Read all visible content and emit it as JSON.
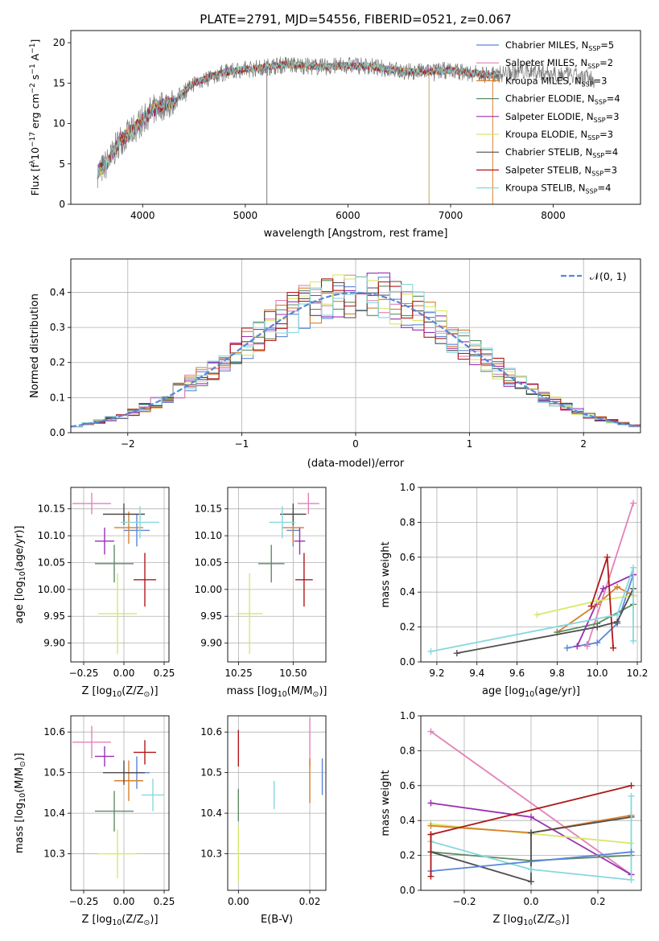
{
  "title": "PLATE=2791, MJD=54556, FIBERID=0521, z=0.067",
  "colors": {
    "chabrier_miles": "#5b86d6",
    "salpeter_miles": "#e381b8",
    "kroupa_miles": "#d77f2e",
    "chabrier_elodie": "#5f8b64",
    "salpeter_elodie": "#9a2fb5",
    "kroupa_elodie": "#d7e868",
    "chabrier_stelib": "#4d4d4d",
    "salpeter_stelib": "#b01818",
    "kroupa_stelib": "#86d8dc",
    "gauss": "#5b86d6"
  },
  "chart_data": [
    {
      "id": "spectrum",
      "type": "line",
      "xlabel": "wavelength [Angstrom, rest frame]",
      "ylabel_parts": [
        "Flux [f",
        "λ",
        "10",
        "−17",
        " erg cm",
        "−2",
        " s",
        "−1",
        " A",
        "−1",
        "]"
      ],
      "xlim": [
        3300,
        8850
      ],
      "ylim": [
        0,
        21.5
      ],
      "xticks": [
        4000,
        5000,
        6000,
        7000,
        8000
      ],
      "yticks": [
        0,
        5,
        10,
        15,
        20
      ],
      "continuum": [
        [
          3560,
          4
        ],
        [
          3620,
          4.5
        ],
        [
          3700,
          6
        ],
        [
          3780,
          8
        ],
        [
          3850,
          8.5
        ],
        [
          3930,
          9.5
        ],
        [
          4000,
          10.5
        ],
        [
          4080,
          11.5
        ],
        [
          4150,
          12
        ],
        [
          4230,
          12.5
        ],
        [
          4300,
          12.5
        ],
        [
          4400,
          14
        ],
        [
          4500,
          15
        ],
        [
          4600,
          15.5
        ],
        [
          4700,
          16
        ],
        [
          4800,
          16.3
        ],
        [
          4900,
          16.5
        ],
        [
          5000,
          16.7
        ],
        [
          5100,
          16.8
        ],
        [
          5200,
          17
        ],
        [
          5400,
          17.3
        ],
        [
          5600,
          17.1
        ],
        [
          5800,
          17
        ],
        [
          6000,
          17.2
        ],
        [
          6200,
          17.1
        ],
        [
          6400,
          16.7
        ],
        [
          6600,
          16.4
        ],
        [
          6800,
          16.4
        ],
        [
          7000,
          16.6
        ],
        [
          7200,
          16.2
        ],
        [
          7400,
          16
        ],
        [
          7600,
          16.3
        ],
        [
          7800,
          16.5
        ],
        [
          8000,
          16.3
        ],
        [
          8200,
          15.8
        ],
        [
          8400,
          15.5
        ]
      ],
      "data_end": 8400,
      "model_end": 7480,
      "spikes": [
        [
          5210,
          0
        ],
        [
          6790,
          0
        ],
        [
          7410,
          0
        ]
      ],
      "legend": [
        {
          "label": "Chabrier MILES, N",
          "sub": "SSP",
          "tail": "=5",
          "color": "#5b86d6"
        },
        {
          "label": "Salpeter MILES, N",
          "sub": "SSP",
          "tail": "=2",
          "color": "#e381b8"
        },
        {
          "label": "Kroupa MILES, N",
          "sub": "SSP",
          "tail": "=3",
          "color": "#d77f2e"
        },
        {
          "label": "Chabrier ELODIE, N",
          "sub": "SSP",
          "tail": "=4",
          "color": "#5f8b64"
        },
        {
          "label": "Salpeter ELODIE, N",
          "sub": "SSP",
          "tail": "=3",
          "color": "#9a2fb5"
        },
        {
          "label": "Kroupa ELODIE, N",
          "sub": "SSP",
          "tail": "=3",
          "color": "#d7e868"
        },
        {
          "label": "Chabrier STELIB, N",
          "sub": "SSP",
          "tail": "=4",
          "color": "#4d4d4d"
        },
        {
          "label": "Salpeter STELIB, N",
          "sub": "SSP",
          "tail": "=3",
          "color": "#b01818"
        },
        {
          "label": "Kroupa STELIB, N",
          "sub": "SSP",
          "tail": "=4",
          "color": "#86d8dc"
        }
      ]
    },
    {
      "id": "residuals",
      "type": "histogram",
      "xlabel": "(data-model)/error",
      "ylabel": "Normed distribution",
      "xlim": [
        -2.5,
        2.5
      ],
      "ylim": [
        0,
        0.495
      ],
      "xticks": [
        -2,
        -1,
        0,
        1,
        2
      ],
      "yticks": [
        0.0,
        0.1,
        0.2,
        0.3,
        0.4
      ],
      "bin_width": 0.1,
      "legend_label": "𝒩(0, 1)",
      "grid": true
    },
    {
      "id": "age_vs_Z",
      "type": "errorbar",
      "xlabel": "Z [log",
      "xlabel_parts": [
        "Z [log",
        "10",
        "(Z/Z",
        "⊙",
        ")]"
      ],
      "ylabel_parts": [
        "age  [log",
        "10",
        "(age/yr)]"
      ],
      "xlim": [
        -0.33,
        0.28
      ],
      "ylim": [
        9.865,
        10.19
      ],
      "xticks": [
        -0.25,
        0.0,
        0.25
      ],
      "xticklabels": [
        "−0.25",
        "0.00",
        "0.25"
      ],
      "yticks": [
        9.9,
        9.95,
        10.0,
        10.05,
        10.1,
        10.15
      ],
      "points": [
        {
          "x": 0.08,
          "y": 10.11,
          "xe": 0.08,
          "ye": 0.03,
          "color": "#5b86d6"
        },
        {
          "x": -0.2,
          "y": 10.16,
          "xe": 0.12,
          "ye": 0.02,
          "color": "#e381b8"
        },
        {
          "x": 0.03,
          "y": 10.115,
          "xe": 0.09,
          "ye": 0.03,
          "color": "#d77f2e"
        },
        {
          "x": -0.06,
          "y": 10.048,
          "xe": 0.12,
          "ye": 0.035,
          "color": "#5f8b64"
        },
        {
          "x": -0.12,
          "y": 10.09,
          "xe": 0.06,
          "ye": 0.025,
          "color": "#9a2fb5"
        },
        {
          "x": -0.04,
          "y": 9.955,
          "xe": 0.12,
          "ye": 0.075,
          "color": "#d7e868"
        },
        {
          "x": 0.0,
          "y": 10.14,
          "xe": 0.13,
          "ye": 0.02,
          "color": "#4d4d4d"
        },
        {
          "x": 0.13,
          "y": 10.018,
          "xe": 0.07,
          "ye": 0.05,
          "color": "#b01818"
        },
        {
          "x": 0.1,
          "y": 10.125,
          "xe": 0.12,
          "ye": 0.03,
          "color": "#86d8dc"
        }
      ]
    },
    {
      "id": "age_vs_mass",
      "type": "errorbar",
      "xlabel_parts": [
        "mass [log",
        "10",
        "(M/M",
        "⊙",
        ")]"
      ],
      "xlim": [
        10.2,
        10.65
      ],
      "ylim": [
        9.865,
        10.19
      ],
      "xticks": [
        10.25,
        10.5
      ],
      "xticklabels": [
        "10.25",
        "10.50"
      ],
      "yticks": [
        9.9,
        9.95,
        10.0,
        10.05,
        10.1,
        10.15
      ],
      "points": [
        {
          "x": 10.5,
          "y": 10.11,
          "xe": 0.03,
          "ye": 0.03,
          "color": "#5b86d6"
        },
        {
          "x": 10.57,
          "y": 10.16,
          "xe": 0.05,
          "ye": 0.02,
          "color": "#e381b8"
        },
        {
          "x": 10.5,
          "y": 10.115,
          "xe": 0.05,
          "ye": 0.03,
          "color": "#d77f2e"
        },
        {
          "x": 10.4,
          "y": 10.048,
          "xe": 0.06,
          "ye": 0.035,
          "color": "#5f8b64"
        },
        {
          "x": 10.53,
          "y": 10.09,
          "xe": 0.025,
          "ye": 0.025,
          "color": "#9a2fb5"
        },
        {
          "x": 10.3,
          "y": 9.955,
          "xe": 0.06,
          "ye": 0.075,
          "color": "#d7e868"
        },
        {
          "x": 10.5,
          "y": 10.14,
          "xe": 0.06,
          "ye": 0.02,
          "color": "#4d4d4d"
        },
        {
          "x": 10.55,
          "y": 10.018,
          "xe": 0.04,
          "ye": 0.05,
          "color": "#b01818"
        },
        {
          "x": 10.45,
          "y": 10.125,
          "xe": 0.06,
          "ye": 0.03,
          "color": "#86d8dc"
        }
      ]
    },
    {
      "id": "weight_vs_age",
      "type": "line",
      "xlabel_parts": [
        "age  [log",
        "10",
        "(age/yr)]"
      ],
      "ylabel": "mass weight",
      "xlim": [
        9.12,
        10.22
      ],
      "ylim": [
        0,
        1.0
      ],
      "xticks": [
        9.2,
        9.4,
        9.6,
        9.8,
        10.0,
        10.2
      ],
      "yticks": [
        0.0,
        0.2,
        0.4,
        0.6,
        0.8,
        1.0
      ],
      "grid": true,
      "series": [
        {
          "color": "#5b86d6",
          "pts": [
            [
              9.85,
              0.08
            ],
            [
              9.95,
              0.1
            ],
            [
              10.0,
              0.11
            ],
            [
              10.1,
              0.22
            ],
            [
              10.18,
              0.5
            ]
          ]
        },
        {
          "color": "#e381b8",
          "pts": [
            [
              9.95,
              0.09
            ],
            [
              10.18,
              0.91
            ]
          ]
        },
        {
          "color": "#d77f2e",
          "pts": [
            [
              9.8,
              0.17
            ],
            [
              10.0,
              0.33
            ],
            [
              10.1,
              0.43
            ],
            [
              10.18,
              0.38
            ]
          ]
        },
        {
          "color": "#5f8b64",
          "pts": [
            [
              9.8,
              0.17
            ],
            [
              10.0,
              0.22
            ],
            [
              10.18,
              0.33
            ]
          ]
        },
        {
          "color": "#9a2fb5",
          "pts": [
            [
              9.9,
              0.09
            ],
            [
              10.03,
              0.42
            ],
            [
              10.18,
              0.5
            ]
          ]
        },
        {
          "color": "#d7e868",
          "pts": [
            [
              9.7,
              0.27
            ],
            [
              10.0,
              0.35
            ],
            [
              10.18,
              0.38
            ]
          ]
        },
        {
          "color": "#4d4d4d",
          "pts": [
            [
              9.3,
              0.05
            ],
            [
              10.0,
              0.2
            ],
            [
              10.1,
              0.23
            ],
            [
              10.18,
              0.42
            ]
          ]
        },
        {
          "color": "#b01818",
          "pts": [
            [
              9.97,
              0.32
            ],
            [
              10.05,
              0.6
            ],
            [
              10.08,
              0.08
            ]
          ]
        },
        {
          "color": "#86d8dc",
          "pts": [
            [
              9.17,
              0.06
            ],
            [
              10.1,
              0.27
            ],
            [
              10.18,
              0.54
            ],
            [
              10.18,
              0.12
            ]
          ]
        }
      ]
    },
    {
      "id": "mass_vs_Z",
      "type": "errorbar",
      "xlabel_parts": [
        "Z [log",
        "10",
        "(Z/Z",
        "⊙",
        ")]"
      ],
      "ylabel_parts": [
        "mass [log",
        "10",
        "(M/M",
        "⊙",
        ")]"
      ],
      "xlim": [
        -0.33,
        0.28
      ],
      "ylim": [
        10.21,
        10.64
      ],
      "xticks": [
        -0.25,
        0.0,
        0.25
      ],
      "xticklabels": [
        "−0.25",
        "0.00",
        "0.25"
      ],
      "yticks": [
        10.3,
        10.4,
        10.5,
        10.6
      ],
      "points": [
        {
          "x": 0.08,
          "y": 10.5,
          "xe": 0.08,
          "ye": 0.04,
          "color": "#5b86d6"
        },
        {
          "x": -0.2,
          "y": 10.575,
          "xe": 0.12,
          "ye": 0.04,
          "color": "#e381b8"
        },
        {
          "x": 0.03,
          "y": 10.48,
          "xe": 0.09,
          "ye": 0.05,
          "color": "#d77f2e"
        },
        {
          "x": -0.06,
          "y": 10.405,
          "xe": 0.12,
          "ye": 0.05,
          "color": "#5f8b64"
        },
        {
          "x": -0.12,
          "y": 10.54,
          "xe": 0.06,
          "ye": 0.025,
          "color": "#9a2fb5"
        },
        {
          "x": -0.04,
          "y": 10.3,
          "xe": 0.12,
          "ye": 0.06,
          "color": "#d7e868"
        },
        {
          "x": 0.0,
          "y": 10.5,
          "xe": 0.13,
          "ye": 0.03,
          "color": "#4d4d4d"
        },
        {
          "x": 0.13,
          "y": 10.55,
          "xe": 0.07,
          "ye": 0.03,
          "color": "#b01818"
        },
        {
          "x": 0.18,
          "y": 10.445,
          "xe": 0.07,
          "ye": 0.04,
          "color": "#86d8dc"
        }
      ]
    },
    {
      "id": "mass_vs_ebv",
      "type": "errorbar",
      "xlabel": "E(B-V)",
      "xlim": [
        -0.003,
        0.0245
      ],
      "ylim": [
        10.21,
        10.64
      ],
      "xticks": [
        0.0,
        0.02
      ],
      "xticklabels": [
        "0.00",
        "0.02"
      ],
      "yticks": [
        10.3,
        10.4,
        10.5,
        10.6
      ],
      "points": [
        {
          "x": 0.0,
          "y": 10.56,
          "xe": 0,
          "ye": 0.045,
          "color": "#b01818"
        },
        {
          "x": 0.0,
          "y": 10.3,
          "xe": 0,
          "ye": 0.07,
          "color": "#d7e868"
        },
        {
          "x": 0.0,
          "y": 10.42,
          "xe": 0,
          "ye": 0.04,
          "color": "#5f8b64"
        },
        {
          "x": 0.01,
          "y": 10.445,
          "xe": 0,
          "ye": 0.035,
          "color": "#86d8dc"
        },
        {
          "x": 0.02,
          "y": 10.575,
          "xe": 0,
          "ye": 0.06,
          "color": "#e381b8"
        },
        {
          "x": 0.02,
          "y": 10.48,
          "xe": 0,
          "ye": 0.055,
          "color": "#d77f2e"
        },
        {
          "x": 0.0235,
          "y": 10.49,
          "xe": 0,
          "ye": 0.045,
          "color": "#5b86d6"
        }
      ]
    },
    {
      "id": "weight_vs_Z",
      "type": "line",
      "xlabel_parts": [
        "Z [log",
        "10",
        "(Z/Z",
        "⊙",
        ")]"
      ],
      "ylabel": "mass weight",
      "xlim": [
        -0.33,
        0.33
      ],
      "ylim": [
        0,
        1.0
      ],
      "xticks": [
        -0.2,
        0.0,
        0.2
      ],
      "xticklabels": [
        "−0.2",
        "0.0",
        "0.2"
      ],
      "yticks": [
        0.0,
        0.2,
        0.4,
        0.6,
        0.8,
        1.0
      ],
      "grid": true,
      "series": [
        {
          "color": "#e381b8",
          "pts": [
            [
              -0.3,
              0.91
            ],
            [
              0.3,
              0.09
            ]
          ]
        },
        {
          "color": "#9a2fb5",
          "pts": [
            [
              -0.3,
              0.5
            ],
            [
              0.0,
              0.42
            ],
            [
              0.3,
              0.09
            ]
          ]
        },
        {
          "color": "#d7e868",
          "pts": [
            [
              -0.3,
              0.38
            ],
            [
              0.3,
              0.27
            ]
          ]
        },
        {
          "color": "#d77f2e",
          "pts": [
            [
              -0.3,
              0.37
            ],
            [
              0.0,
              0.33
            ],
            [
              0.3,
              0.43
            ]
          ]
        },
        {
          "color": "#5f8b64",
          "pts": [
            [
              -0.3,
              0.32
            ],
            [
              -0.3,
              0.22
            ],
            [
              0.0,
              0.17
            ],
            [
              0.3,
              0.2
            ]
          ]
        },
        {
          "color": "#4d4d4d",
          "pts": [
            [
              -0.3,
              0.22
            ],
            [
              0.0,
              0.05
            ],
            [
              0.0,
              0.33
            ],
            [
              0.3,
              0.42
            ]
          ]
        },
        {
          "color": "#86d8dc",
          "pts": [
            [
              -0.3,
              0.28
            ],
            [
              0.0,
              0.12
            ],
            [
              0.3,
              0.06
            ],
            [
              0.3,
              0.54
            ]
          ]
        },
        {
          "color": "#5b86d6",
          "pts": [
            [
              -0.3,
              0.11
            ],
            [
              0.3,
              0.22
            ]
          ]
        },
        {
          "color": "#b01818",
          "pts": [
            [
              -0.3,
              0.08
            ],
            [
              -0.3,
              0.32
            ],
            [
              0.3,
              0.6
            ]
          ]
        }
      ]
    }
  ]
}
